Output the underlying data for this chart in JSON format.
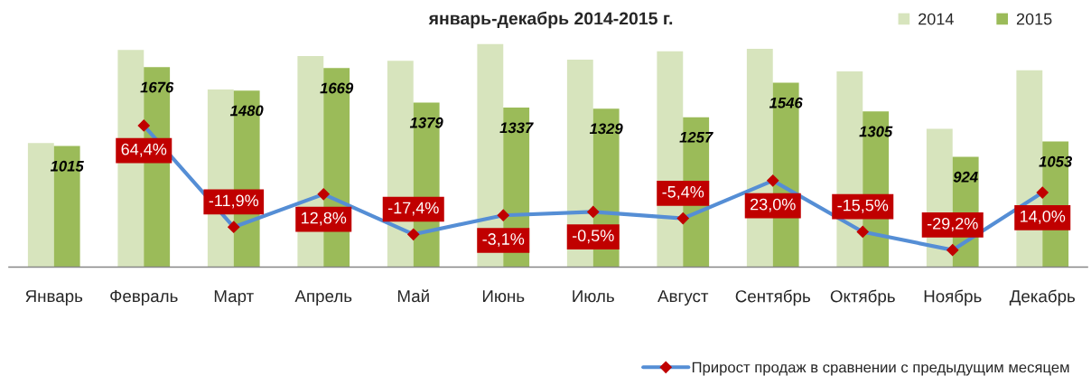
{
  "chart_data": {
    "type": "bar",
    "title": "январь-декабрь 2014-2015 г.",
    "categories": [
      "Январь",
      "Февраль",
      "Март",
      "Апрель",
      "Май",
      "Июнь",
      "Июль",
      "Август",
      "Сентябрь",
      "Октябрь",
      "Ноябрь",
      "Декабрь"
    ],
    "series": [
      {
        "name": "2014",
        "color": "#d7e4bd",
        "values": [
          1040,
          1820,
          1490,
          1770,
          1730,
          1870,
          1740,
          1810,
          1830,
          1640,
          1160,
          1650
        ]
      },
      {
        "name": "2015",
        "color": "#9bbb59",
        "values": [
          1015,
          1676,
          1480,
          1669,
          1379,
          1337,
          1329,
          1257,
          1546,
          1305,
          924,
          1053
        ],
        "value_labels": [
          "1015",
          "1676",
          "1480",
          "1669",
          "1379",
          "1337",
          "1329",
          "1257",
          "1546",
          "1305",
          "924",
          "1053"
        ]
      },
      {
        "name": "Прирост продаж в сравнении с предыдущим месяцем",
        "type": "line",
        "axis": "y2",
        "color": "#558ed5",
        "values": [
          null,
          64.4,
          -11.9,
          12.8,
          -17.4,
          -3.1,
          -0.5,
          -5.4,
          23.0,
          -15.5,
          -29.2,
          14.0
        ],
        "value_labels": [
          null,
          "64,4%",
          "-11,9%",
          "12,8%",
          "-17,4%",
          "-3,1%",
          "-0,5%",
          "-5,4%",
          "23,0%",
          "-15,5%",
          "-29,2%",
          "14,0%"
        ]
      }
    ],
    "tick_labels": "x",
    "legend": "right",
    "marker": "diamond",
    "line_style": "solid",
    "grid": false
  }
}
